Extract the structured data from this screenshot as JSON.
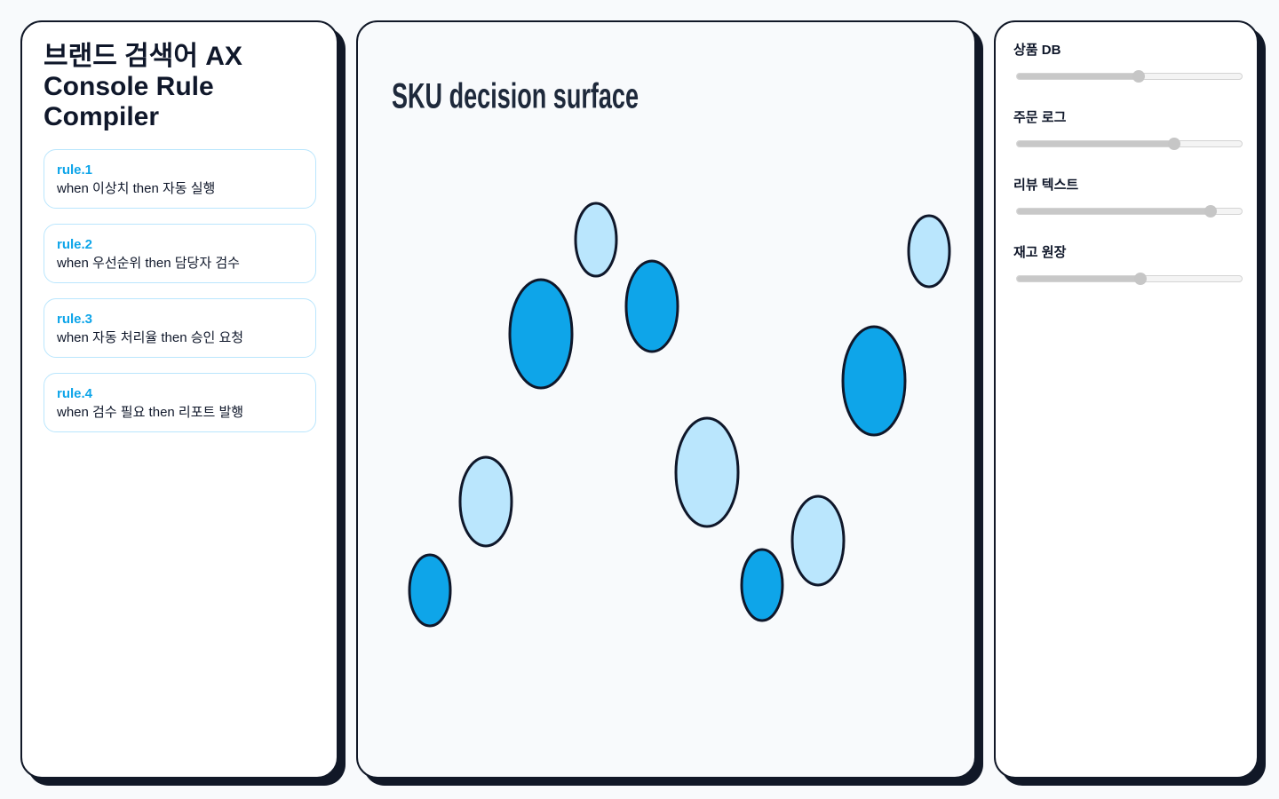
{
  "header": {
    "title": "브랜드 검색어 AX Console Rule Compiler"
  },
  "rules": [
    {
      "id": "rule.1",
      "text": "when 이상치 then 자동 실행"
    },
    {
      "id": "rule.2",
      "text": "when 우선순위 then 담당자 검수"
    },
    {
      "id": "rule.3",
      "text": "when 자동 처리율 then 승인 요청"
    },
    {
      "id": "rule.4",
      "text": "when 검수 필요 then 리포트 발행"
    }
  ],
  "canvas": {
    "title": "SKU decision surface"
  },
  "controls": [
    {
      "label": "상품 DB"
    },
    {
      "label": "주문 로그"
    },
    {
      "label": "리뷰 텍스트"
    },
    {
      "label": "재고 원장"
    }
  ]
}
